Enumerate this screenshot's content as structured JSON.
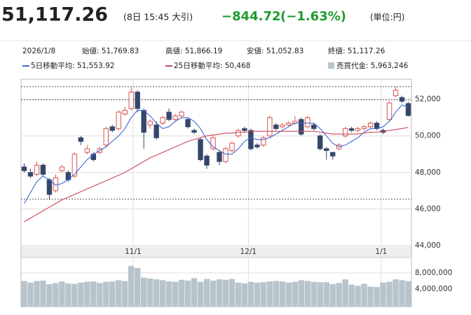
{
  "header": {
    "price": "51,117.26",
    "time": "(8日 15:45 大引)",
    "change": "−844.72",
    "change_pct": "(−1.63%)",
    "unit": "(単位:円)"
  },
  "info": {
    "date": "2026/1/8",
    "open": "始値: 51,769.83",
    "high": "高値: 51,866.19",
    "low": "安値: 51,052.83",
    "close": "終値: 51,117.26"
  },
  "chart_data": [
    {
      "type": "candlestick",
      "xlim": [
        -0.5,
        61.5
      ],
      "xticks": [
        {
          "value": 17.3,
          "label": "11/1"
        },
        {
          "value": 35.6,
          "label": "12/1"
        },
        {
          "value": 56.7,
          "label": "1/1"
        }
      ],
      "ylim": [
        44000,
        53100
      ],
      "yticks": [
        {
          "value": 44000,
          "label": "44,000"
        },
        {
          "value": 46000,
          "label": "46,000"
        },
        {
          "value": 48000,
          "label": "48,000"
        },
        {
          "value": 50000,
          "label": "50,000"
        },
        {
          "value": 52000,
          "label": "52,000"
        }
      ],
      "grid": true,
      "up_color": "#d9534f",
      "down_color": "#34476b",
      "ref_lines": [
        52690,
        51980,
        46540
      ],
      "open": [
        48300,
        48000,
        47900,
        48400,
        47600,
        47000,
        48100,
        48000,
        47800,
        49900,
        49100,
        49000,
        49100,
        49500,
        50500,
        50400,
        51200,
        51500,
        52400,
        51400,
        50600,
        50600,
        50700,
        51300,
        50900,
        51100,
        50900,
        50300,
        49800,
        48900,
        49300,
        49100,
        48600,
        49200,
        50000,
        50400,
        50300,
        49500,
        49500,
        50000,
        50600,
        50500,
        50600,
        50700,
        50900,
        50500,
        50600,
        50000,
        49300,
        49100,
        49300,
        50000,
        50400,
        50300,
        50400,
        50500,
        50700,
        50300,
        50900,
        52200,
        52100,
        51769.83
      ],
      "high": [
        48500,
        48200,
        48600,
        48500,
        47700,
        47900,
        48400,
        48100,
        49100,
        50000,
        49500,
        49100,
        49400,
        50500,
        50600,
        51400,
        51600,
        52650,
        52500,
        51500,
        50900,
        50800,
        51100,
        51500,
        51200,
        51400,
        51000,
        50400,
        49900,
        49000,
        50000,
        49200,
        49400,
        49700,
        50400,
        50500,
        50400,
        49600,
        50000,
        51100,
        50700,
        50700,
        50800,
        51100,
        51000,
        51100,
        50700,
        50100,
        49400,
        49100,
        49600,
        50500,
        50500,
        50500,
        50600,
        50800,
        50800,
        50400,
        51900,
        52700,
        52200,
        51866.19
      ],
      "low": [
        48000,
        47700,
        47800,
        47800,
        46500,
        46900,
        48000,
        47500,
        47700,
        49500,
        49000,
        48600,
        49000,
        49400,
        50200,
        50300,
        51100,
        51400,
        51300,
        49300,
        50400,
        49800,
        50600,
        50800,
        50800,
        51000,
        50400,
        50100,
        48600,
        48200,
        49200,
        48400,
        48500,
        49100,
        49900,
        50200,
        49200,
        49300,
        49400,
        49900,
        50300,
        50400,
        50500,
        50600,
        50000,
        50400,
        50300,
        49200,
        48700,
        48700,
        49200,
        49900,
        50200,
        50200,
        50300,
        50400,
        50300,
        50100,
        50800,
        52100,
        51800,
        51052.83
      ],
      "close": [
        48100,
        47800,
        48400,
        47900,
        46800,
        47700,
        48300,
        47600,
        49000,
        49700,
        49300,
        48700,
        49300,
        50400,
        50300,
        51300,
        51400,
        52400,
        51500,
        50200,
        50800,
        49900,
        51000,
        50900,
        51100,
        51300,
        50500,
        50200,
        48700,
        48400,
        49900,
        48600,
        49300,
        49600,
        50300,
        50300,
        49300,
        49400,
        49900,
        51000,
        50400,
        50600,
        50700,
        50800,
        50100,
        51000,
        50400,
        49300,
        49200,
        48900,
        49500,
        50400,
        50300,
        50400,
        50500,
        50700,
        50400,
        50200,
        51800,
        52500,
        51900,
        51117.26
      ],
      "series": [
        {
          "name": "5日移動平均: 51,553.92",
          "color": "#3d68d4",
          "values": [
            46300,
            46900,
            47500,
            47800,
            47600,
            47300,
            47400,
            47600,
            47900,
            48300,
            48700,
            49000,
            49200,
            49400,
            49700,
            50000,
            50400,
            51000,
            51400,
            51400,
            51100,
            50700,
            50400,
            50500,
            50800,
            51000,
            51000,
            50800,
            50400,
            49800,
            49400,
            49200,
            49000,
            49000,
            49300,
            49700,
            49900,
            49800,
            49800,
            49900,
            50100,
            50300,
            50500,
            50700,
            50700,
            50700,
            50700,
            50400,
            50000,
            49600,
            49400,
            49500,
            49700,
            49900,
            50200,
            50400,
            50400,
            50500,
            50800,
            51300,
            51700,
            51553.92
          ]
        },
        {
          "name": "25日移動平均: 50,468",
          "color": "#c8485a",
          "values": [
            45300,
            45500,
            45700,
            45900,
            46100,
            46300,
            46500,
            46650,
            46800,
            46950,
            47100,
            47250,
            47400,
            47550,
            47700,
            47850,
            48000,
            48200,
            48400,
            48600,
            48800,
            48950,
            49100,
            49250,
            49400,
            49550,
            49700,
            49800,
            49900,
            50000,
            50050,
            50100,
            50150,
            50150,
            50200,
            50200,
            50250,
            50250,
            50250,
            50250,
            50250,
            50250,
            50250,
            50250,
            50250,
            50250,
            50250,
            50200,
            50150,
            50100,
            50100,
            50100,
            50100,
            50100,
            50150,
            50200,
            50200,
            50250,
            50300,
            50350,
            50400,
            50468
          ]
        }
      ]
    },
    {
      "type": "bar",
      "name": "売買代金: 5,963,246",
      "color": "#b8c4cc",
      "ylim": [
        0,
        12000000
      ],
      "yticks": [
        {
          "value": 4000000,
          "label": "4,000,000"
        },
        {
          "value": 8000000,
          "label": "8,000,000"
        }
      ],
      "values": [
        6000000,
        5600000,
        6000000,
        6100000,
        5200000,
        5500000,
        5900000,
        5400000,
        5300000,
        5600000,
        5800000,
        5900000,
        5500000,
        5800000,
        5900000,
        6200000,
        6000000,
        9700000,
        9200000,
        6800000,
        6600000,
        6400000,
        6200000,
        5900000,
        5800000,
        6300000,
        6100000,
        6700000,
        5800000,
        6500000,
        6100000,
        6400000,
        6300000,
        6500000,
        5600000,
        5400000,
        5800000,
        5600000,
        5700000,
        5900000,
        6000000,
        5900000,
        5600000,
        5800000,
        6200000,
        6000000,
        5800000,
        5700000,
        5700000,
        5200000,
        5500000,
        6400000,
        5100000,
        4800000,
        5300000,
        4600000,
        4500000,
        5600000,
        5800000,
        6400000,
        6200000,
        5963246
      ]
    }
  ]
}
